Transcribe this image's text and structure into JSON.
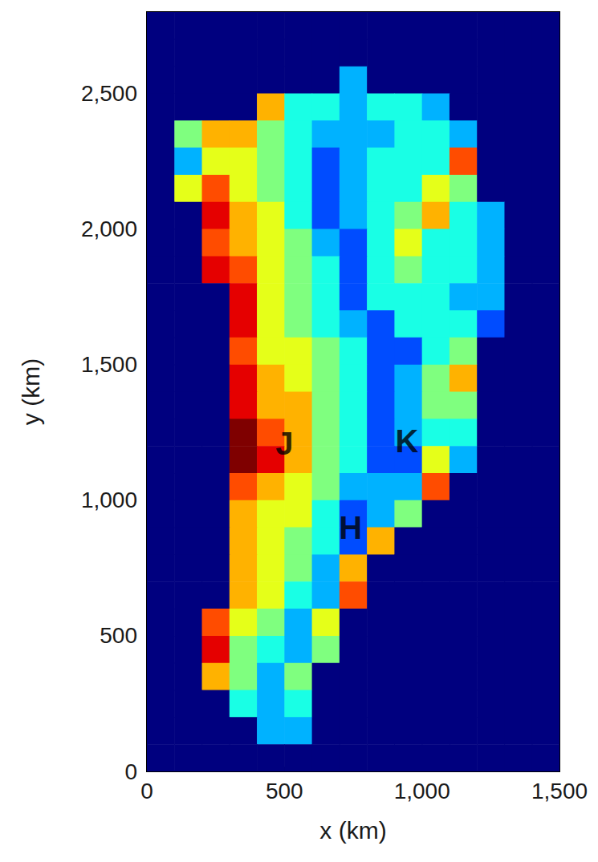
{
  "chart_data": {
    "type": "heatmap",
    "x_label": "x (km)",
    "y_label": "y (km)",
    "xlim": [
      0,
      1500
    ],
    "ylim": [
      0,
      2800
    ],
    "xticks": [
      0,
      500,
      1000,
      1500
    ],
    "yticks": [
      0,
      500,
      1000,
      1500,
      2000,
      2500
    ],
    "grid": false,
    "value_range": [
      0,
      10
    ],
    "x": [
      50,
      150,
      250,
      350,
      450,
      550,
      650,
      750,
      850,
      950,
      1050,
      1150,
      1250,
      1350,
      1450
    ],
    "y": [
      2750,
      2650,
      2550,
      2450,
      2350,
      2250,
      2150,
      2050,
      1950,
      1850,
      1750,
      1650,
      1550,
      1450,
      1350,
      1250,
      1150,
      1050,
      950,
      850,
      750,
      650,
      550,
      450,
      350,
      250,
      150,
      50
    ],
    "values": [
      [
        0,
        0,
        0,
        0,
        0,
        0,
        0,
        0,
        0,
        0,
        0,
        0,
        0,
        0,
        0
      ],
      [
        0,
        0,
        0,
        0,
        0,
        0,
        0,
        0,
        0,
        0,
        0,
        0,
        0,
        0,
        0
      ],
      [
        0,
        0,
        0,
        0,
        0,
        0,
        0,
        3,
        0,
        0,
        0,
        0,
        0,
        0,
        0
      ],
      [
        0,
        0,
        0,
        0,
        7,
        4,
        4,
        3,
        4,
        4,
        3,
        0,
        0,
        0,
        0
      ],
      [
        0,
        5,
        7,
        7,
        5,
        4,
        3,
        3,
        3,
        4,
        4,
        3,
        0,
        0,
        0
      ],
      [
        0,
        3,
        6,
        6,
        5,
        4,
        2,
        3,
        4,
        4,
        4,
        8,
        0,
        0,
        0
      ],
      [
        0,
        6,
        8,
        6,
        5,
        4,
        2,
        3,
        4,
        4,
        6,
        5,
        0,
        0,
        0
      ],
      [
        0,
        0,
        9,
        7,
        6,
        4,
        2,
        3,
        4,
        5,
        7,
        4,
        3,
        0,
        0
      ],
      [
        0,
        0,
        8,
        7,
        6,
        5,
        3,
        2,
        4,
        6,
        4,
        4,
        3,
        0,
        0
      ],
      [
        0,
        0,
        9,
        8,
        6,
        5,
        4,
        2,
        4,
        5,
        4,
        4,
        3,
        0,
        0
      ],
      [
        0,
        0,
        0,
        9,
        6,
        5,
        4,
        2,
        4,
        4,
        4,
        3,
        3,
        0,
        0
      ],
      [
        0,
        0,
        0,
        9,
        6,
        5,
        4,
        3,
        2,
        4,
        4,
        4,
        2,
        0,
        0
      ],
      [
        0,
        0,
        0,
        8,
        6,
        6,
        5,
        4,
        2,
        2,
        4,
        5,
        0,
        0,
        0
      ],
      [
        0,
        0,
        0,
        9,
        7,
        6,
        5,
        4,
        2,
        3,
        5,
        7,
        0,
        0,
        0
      ],
      [
        0,
        0,
        0,
        9,
        7,
        7,
        5,
        4,
        2,
        3,
        5,
        5,
        0,
        0,
        0
      ],
      [
        0,
        0,
        0,
        10,
        8,
        7,
        5,
        4,
        2,
        3,
        4,
        4,
        0,
        0,
        0
      ],
      [
        0,
        0,
        0,
        10,
        9,
        7,
        5,
        4,
        2,
        2,
        6,
        3,
        0,
        0,
        0
      ],
      [
        0,
        0,
        0,
        8,
        7,
        6,
        5,
        3,
        3,
        3,
        8,
        0,
        0,
        0,
        0
      ],
      [
        0,
        0,
        0,
        7,
        6,
        6,
        4,
        2,
        3,
        5,
        0,
        0,
        0,
        0,
        0
      ],
      [
        0,
        0,
        0,
        7,
        6,
        5,
        4,
        2,
        7,
        0,
        0,
        0,
        0,
        0,
        0
      ],
      [
        0,
        0,
        0,
        7,
        6,
        5,
        3,
        7,
        0,
        0,
        0,
        0,
        0,
        0,
        0
      ],
      [
        0,
        0,
        0,
        7,
        6,
        4,
        3,
        8,
        0,
        0,
        0,
        0,
        0,
        0,
        0
      ],
      [
        0,
        0,
        8,
        6,
        5,
        3,
        6,
        0,
        0,
        0,
        0,
        0,
        0,
        0,
        0
      ],
      [
        0,
        0,
        9,
        5,
        4,
        3,
        5,
        0,
        0,
        0,
        0,
        0,
        0,
        0,
        0
      ],
      [
        0,
        0,
        7,
        5,
        3,
        5,
        0,
        0,
        0,
        0,
        0,
        0,
        0,
        0,
        0
      ],
      [
        0,
        0,
        0,
        4,
        3,
        4,
        0,
        0,
        0,
        0,
        0,
        0,
        0,
        0,
        0
      ],
      [
        0,
        0,
        0,
        0,
        3,
        3,
        0,
        0,
        0,
        0,
        0,
        0,
        0,
        0,
        0
      ],
      [
        0,
        0,
        0,
        0,
        0,
        0,
        0,
        0,
        0,
        0,
        0,
        0,
        0,
        0,
        0
      ]
    ],
    "annotations": [
      {
        "text": "J",
        "x": 500,
        "y": 1210
      },
      {
        "text": "K",
        "x": 945,
        "y": 1217
      },
      {
        "text": "H",
        "x": 740,
        "y": 899
      }
    ]
  }
}
